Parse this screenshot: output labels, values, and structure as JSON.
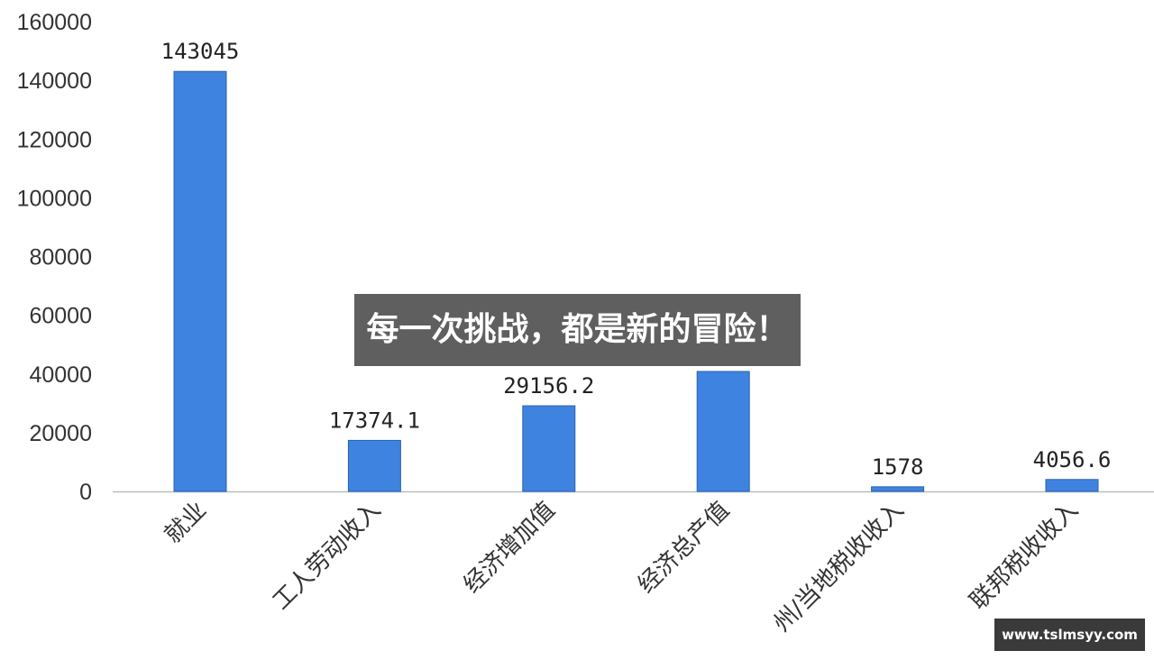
{
  "chart_data": {
    "type": "bar",
    "categories": [
      "就业",
      "工人劳动收入",
      "经济增加值",
      "经济总产值",
      "州/当地税收收入",
      "联邦税收收入"
    ],
    "values": [
      143045,
      17374.1,
      29156.2,
      40850,
      1578,
      4056.6
    ],
    "data_labels": [
      "143045",
      "17374.1",
      "29156.2",
      null,
      "1578",
      "4056.6"
    ],
    "yticks": [
      "0",
      "20000",
      "40000",
      "60000",
      "80000",
      "100000",
      "120000",
      "140000",
      "160000"
    ],
    "ylim": [
      0,
      160000
    ],
    "grid": false,
    "bar_color": "#3f83e0",
    "title": "",
    "xlabel": "",
    "ylabel": ""
  },
  "overlay": {
    "banner_text": "每一次挑战，都是新的冒险！",
    "site_badge": "www.tslmsyy.com"
  }
}
